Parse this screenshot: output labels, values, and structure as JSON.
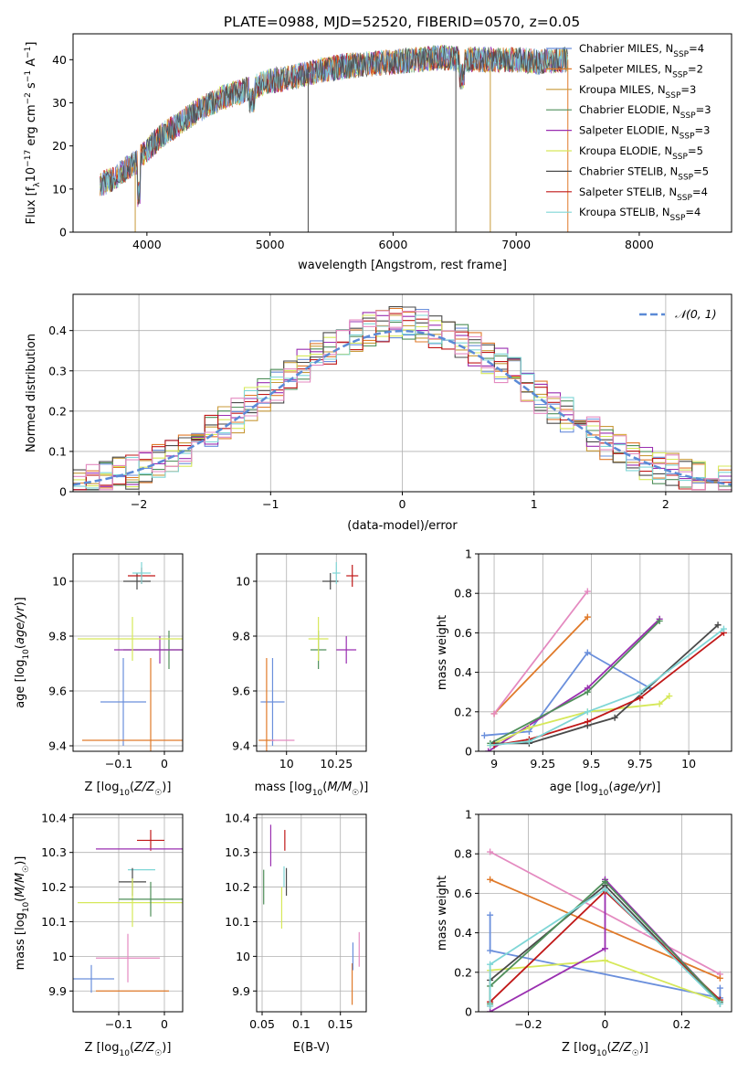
{
  "figure_title": "PLATE=0988, MJD=52520, FIBERID=0570, z=0.05",
  "colors": {
    "Chabrier MILES": "#6a8fdc",
    "Salpeter MILES": "#e07a2a",
    "Kroupa MILES": "#c89a3a",
    "Chabrier ELODIE": "#4f8f5a",
    "Salpeter ELODIE": "#9a2fb0",
    "Kroupa ELODIE": "#d6e85a",
    "Chabrier STELIB": "#4a4a4a",
    "Salpeter STELIB": "#c01818",
    "Kroupa STELIB": "#7fd6d6",
    "pink": "#e48ac0",
    "normal": "#5b8ad6"
  },
  "chart_data": [
    {
      "id": "spectrum",
      "type": "line",
      "title": "PLATE=0988, MJD=52520, FIBERID=0570, z=0.05",
      "xlabel": "wavelength [Angstrom, rest frame]",
      "ylabel": "Flux [f_λ10^-17 erg cm^-2 s^-1 A^-1]",
      "xlim": [
        3400,
        8750
      ],
      "ylim": [
        0,
        46
      ],
      "xticks": [
        4000,
        5000,
        6000,
        7000,
        8000
      ],
      "yticks": [
        0,
        10,
        20,
        30,
        40
      ],
      "grid": false,
      "legend_position": "top-right",
      "continuum": {
        "x": [
          3620,
          3700,
          3800,
          3900,
          4000,
          4100,
          4200,
          4400,
          4600,
          4800,
          5000,
          5200,
          5400,
          5600,
          5800,
          6000,
          6200,
          6400,
          6600,
          6800,
          7000,
          7200,
          7400
        ],
        "y": [
          11,
          12,
          14,
          16,
          19,
          22,
          24,
          28,
          31,
          33,
          35,
          36,
          37.5,
          38.5,
          39,
          39.5,
          40,
          40.5,
          40,
          40,
          40,
          39.5,
          40
        ]
      },
      "legend": [
        {
          "label": "Chabrier MILES, N",
          "sub": "SSP",
          "suffix": "=4"
        },
        {
          "label": "Salpeter MILES, N",
          "sub": "SSP",
          "suffix": "=2"
        },
        {
          "label": "Kroupa MILES, N",
          "sub": "SSP",
          "suffix": "=3"
        },
        {
          "label": "Chabrier ELODIE, N",
          "sub": "SSP",
          "suffix": "=3"
        },
        {
          "label": "Salpeter ELODIE, N",
          "sub": "SSP",
          "suffix": "=3"
        },
        {
          "label": "Kroupa ELODIE, N",
          "sub": "SSP",
          "suffix": "=5"
        },
        {
          "label": "Chabrier STELIB, N",
          "sub": "SSP",
          "suffix": "=5"
        },
        {
          "label": "Salpeter STELIB, N",
          "sub": "SSP",
          "suffix": "=4"
        },
        {
          "label": "Kroupa STELIB, N",
          "sub": "SSP",
          "suffix": "=4"
        }
      ]
    },
    {
      "id": "residuals",
      "type": "line",
      "xlabel": "(data-model)/error",
      "ylabel": "Normed distribution",
      "xlim": [
        -2.5,
        2.5
      ],
      "ylim": [
        0,
        0.49
      ],
      "xticks": [
        -2,
        -1,
        0,
        1,
        2
      ],
      "yticks": [
        0.0,
        0.1,
        0.2,
        0.3,
        0.4
      ],
      "grid": true,
      "legend_position": "top-right",
      "legend": "𝒩(0, 1)"
    },
    {
      "id": "age_vs_Z",
      "type": "scatter",
      "xlabel": "Z [log10(Z/Z☉)]",
      "ylabel": "age  [log10(age/yr)]",
      "xlim": [
        -0.2,
        0.04
      ],
      "ylim": [
        9.38,
        10.1
      ],
      "xticks": [
        -0.1,
        0.0
      ],
      "yticks": [
        9.4,
        9.6,
        9.8,
        10.0
      ],
      "grid": true,
      "points": [
        {
          "model": "Chabrier MILES",
          "x": -0.09,
          "y": 9.56,
          "xerr": 0.05,
          "yerr": 0.16
        },
        {
          "model": "Salpeter MILES",
          "x": -0.03,
          "y": 9.42,
          "xerr": 0.15,
          "yerr": 0.3
        },
        {
          "model": "Chabrier ELODIE",
          "x": 0.01,
          "y": 9.75,
          "xerr": 0.1,
          "yerr": 0.07
        },
        {
          "model": "Salpeter ELODIE",
          "x": -0.01,
          "y": 9.75,
          "xerr": 0.1,
          "yerr": 0.05
        },
        {
          "model": "Kroupa ELODIE",
          "x": -0.07,
          "y": 9.79,
          "xerr": 0.12,
          "yerr": 0.08
        },
        {
          "model": "Chabrier STELIB",
          "x": -0.06,
          "y": 10.0,
          "xerr": 0.03,
          "yerr": 0.03
        },
        {
          "model": "Salpeter STELIB",
          "x": -0.05,
          "y": 10.02,
          "xerr": 0.03,
          "yerr": 0.03
        },
        {
          "model": "Kroupa STELIB",
          "x": -0.05,
          "y": 10.03,
          "xerr": 0.02,
          "yerr": 0.04
        }
      ]
    },
    {
      "id": "age_vs_mass",
      "type": "scatter",
      "xlabel": "mass [log10(M/M☉)]",
      "ylabel": "",
      "xlim": [
        9.85,
        10.4
      ],
      "ylim": [
        9.38,
        10.1
      ],
      "xticks": [
        10.0,
        10.25
      ],
      "yticks": [
        9.4,
        9.6,
        9.8,
        10.0
      ],
      "grid": true,
      "points": [
        {
          "model": "Chabrier MILES",
          "x": 9.93,
          "y": 9.56,
          "xerr": 0.06,
          "yerr": 0.16
        },
        {
          "model": "Salpeter MILES",
          "x": 9.9,
          "y": 9.42,
          "xerr": 0.04,
          "yerr": 0.3
        },
        {
          "model": "pink",
          "x": 9.98,
          "y": 9.42,
          "xerr": 0.06,
          "yerr": 0.0
        },
        {
          "model": "Chabrier ELODIE",
          "x": 10.16,
          "y": 9.75,
          "xerr": 0.04,
          "yerr": 0.07
        },
        {
          "model": "Salpeter ELODIE",
          "x": 10.3,
          "y": 9.75,
          "xerr": 0.05,
          "yerr": 0.05
        },
        {
          "model": "Kroupa ELODIE",
          "x": 10.16,
          "y": 9.79,
          "xerr": 0.05,
          "yerr": 0.08
        },
        {
          "model": "Chabrier STELIB",
          "x": 10.22,
          "y": 10.0,
          "xerr": 0.04,
          "yerr": 0.03
        },
        {
          "model": "Salpeter STELIB",
          "x": 10.33,
          "y": 10.02,
          "xerr": 0.03,
          "yerr": 0.04
        },
        {
          "model": "Kroupa STELIB",
          "x": 10.25,
          "y": 10.03,
          "xerr": 0.02,
          "yerr": 0.04
        }
      ]
    },
    {
      "id": "weight_vs_age",
      "type": "line",
      "xlabel": "age  [log10(age/yr)]",
      "ylabel": "mass weight",
      "xlim": [
        8.92,
        10.22
      ],
      "ylim": [
        0,
        1
      ],
      "xticks": [
        9.0,
        9.25,
        9.5,
        9.75,
        10.0
      ],
      "yticks": [
        0.0,
        0.2,
        0.4,
        0.6,
        0.8,
        1.0
      ],
      "grid": true,
      "series": [
        {
          "model": "Chabrier MILES",
          "x": [
            8.95,
            9.18,
            9.48,
            9.8
          ],
          "y": [
            0.08,
            0.1,
            0.5,
            0.32
          ]
        },
        {
          "model": "Salpeter MILES",
          "x": [
            9.0,
            9.48
          ],
          "y": [
            0.19,
            0.68
          ]
        },
        {
          "model": "pink",
          "x": [
            9.0,
            9.48
          ],
          "y": [
            0.19,
            0.81
          ]
        },
        {
          "model": "Salpeter ELODIE",
          "x": [
            8.97,
            9.48,
            9.85
          ],
          "y": [
            0.0,
            0.32,
            0.67
          ]
        },
        {
          "model": "Chabrier ELODIE",
          "x": [
            8.98,
            9.48,
            9.85
          ],
          "y": [
            0.04,
            0.3,
            0.66
          ]
        },
        {
          "model": "Kroupa ELODIE",
          "x": [
            8.98,
            9.18,
            9.48,
            9.85,
            9.9
          ],
          "y": [
            0.03,
            0.12,
            0.2,
            0.24,
            0.28
          ]
        },
        {
          "model": "Chabrier STELIB",
          "x": [
            9.0,
            9.18,
            9.48,
            9.62,
            10.15
          ],
          "y": [
            0.04,
            0.04,
            0.13,
            0.17,
            0.64
          ]
        },
        {
          "model": "Salpeter STELIB",
          "x": [
            9.0,
            9.18,
            9.48,
            9.75,
            10.18
          ],
          "y": [
            0.03,
            0.06,
            0.15,
            0.27,
            0.6
          ]
        },
        {
          "model": "Kroupa STELIB",
          "x": [
            8.98,
            9.18,
            9.48,
            9.75,
            10.18
          ],
          "y": [
            0.03,
            0.05,
            0.2,
            0.3,
            0.62
          ]
        }
      ]
    },
    {
      "id": "mass_vs_Z",
      "type": "scatter",
      "xlabel": "Z [log10(Z/Z☉)]",
      "ylabel": "mass [log10(M/M☉)]",
      "xlim": [
        -0.2,
        0.04
      ],
      "ylim": [
        9.84,
        10.41
      ],
      "xticks": [
        -0.1,
        0.0
      ],
      "yticks": [
        9.9,
        10.0,
        10.1,
        10.2,
        10.3,
        10.4
      ],
      "grid": true,
      "points": [
        {
          "model": "Chabrier MILES",
          "x": -0.16,
          "y": 9.935,
          "xerr": 0.05,
          "yerr": 0.04
        },
        {
          "model": "Salpeter MILES",
          "x": -0.07,
          "y": 9.9,
          "xerr": 0.08,
          "yerr": 0.0
        },
        {
          "model": "pink",
          "x": -0.08,
          "y": 9.995,
          "xerr": 0.07,
          "yerr": 0.07
        },
        {
          "model": "Salpeter STELIB",
          "x": -0.03,
          "y": 10.335,
          "xerr": 0.03,
          "yerr": 0.03
        },
        {
          "model": "Salpeter ELODIE",
          "x": -0.05,
          "y": 10.31,
          "xerr": 0.1,
          "yerr": 0.0
        },
        {
          "model": "Kroupa STELIB",
          "x": -0.05,
          "y": 10.25,
          "xerr": 0.03,
          "yerr": 0.0
        },
        {
          "model": "Chabrier STELIB",
          "x": -0.07,
          "y": 10.215,
          "xerr": 0.03,
          "yerr": 0.04
        },
        {
          "model": "Kroupa ELODIE",
          "x": -0.07,
          "y": 10.155,
          "xerr": 0.12,
          "yerr": 0.07
        },
        {
          "model": "Chabrier ELODIE",
          "x": -0.03,
          "y": 10.165,
          "xerr": 0.07,
          "yerr": 0.05
        }
      ]
    },
    {
      "id": "mass_vs_ebv",
      "type": "scatter",
      "xlabel": "E(B-V)",
      "ylabel": "",
      "xlim": [
        0.043,
        0.183
      ],
      "ylim": [
        9.84,
        10.41
      ],
      "xticks": [
        0.05,
        0.1,
        0.15
      ],
      "yticks": [
        9.9,
        10.0,
        10.1,
        10.2,
        10.3,
        10.4
      ],
      "grid": true,
      "points": [
        {
          "model": "Chabrier ELODIE",
          "x": 0.052,
          "y": 10.2,
          "yerr": 0.05
        },
        {
          "model": "Salpeter ELODIE",
          "x": 0.061,
          "y": 10.32,
          "yerr": 0.06
        },
        {
          "model": "Kroupa ELODIE",
          "x": 0.075,
          "y": 10.14,
          "yerr": 0.06
        },
        {
          "model": "Kroupa STELIB",
          "x": 0.078,
          "y": 10.23,
          "yerr": 0.03
        },
        {
          "model": "Salpeter STELIB",
          "x": 0.079,
          "y": 10.335,
          "yerr": 0.03
        },
        {
          "model": "Chabrier STELIB",
          "x": 0.081,
          "y": 10.215,
          "yerr": 0.04
        },
        {
          "model": "Salpeter MILES",
          "x": 0.165,
          "y": 9.92,
          "yerr": 0.06
        },
        {
          "model": "Chabrier MILES",
          "x": 0.166,
          "y": 10.0,
          "yerr": 0.04
        },
        {
          "model": "pink",
          "x": 0.174,
          "y": 10.02,
          "yerr": 0.05
        }
      ]
    },
    {
      "id": "weight_vs_Z",
      "type": "line",
      "xlabel": "Z [log10(Z/Z☉)]",
      "ylabel": "mass weight",
      "xlim": [
        -0.33,
        0.33
      ],
      "ylim": [
        0,
        1
      ],
      "xticks": [
        -0.2,
        0.0,
        0.2
      ],
      "yticks": [
        0.0,
        0.2,
        0.4,
        0.6,
        0.8,
        1.0
      ],
      "grid": true,
      "series": [
        {
          "model": "pink",
          "x": [
            -0.3,
            0.3
          ],
          "y": [
            0.81,
            0.19
          ]
        },
        {
          "model": "Salpeter MILES",
          "x": [
            -0.3,
            0.3
          ],
          "y": [
            0.67,
            0.17
          ]
        },
        {
          "model": "Chabrier MILES",
          "x": [
            -0.3,
            -0.3,
            0.3,
            0.3
          ],
          "y": [
            0.49,
            0.31,
            0.07,
            0.12
          ]
        },
        {
          "model": "Kroupa ELODIE",
          "x": [
            -0.3,
            0.0,
            0.3
          ],
          "y": [
            0.21,
            0.26,
            0.05
          ]
        },
        {
          "model": "Salpeter ELODIE",
          "x": [
            -0.3,
            0.0,
            0.0,
            0.3
          ],
          "y": [
            0.0,
            0.32,
            0.67,
            0.05
          ]
        },
        {
          "model": "Chabrier STELIB",
          "x": [
            -0.3,
            -0.3,
            0.0,
            0.3
          ],
          "y": [
            0.03,
            0.16,
            0.64,
            0.04
          ]
        },
        {
          "model": "Salpeter STELIB",
          "x": [
            -0.3,
            0.0,
            0.3
          ],
          "y": [
            0.05,
            0.61,
            0.06
          ]
        },
        {
          "model": "Chabrier ELODIE",
          "x": [
            -0.3,
            -0.3,
            0.0,
            0.3
          ],
          "y": [
            0.04,
            0.13,
            0.66,
            0.05
          ]
        },
        {
          "model": "Kroupa STELIB",
          "x": [
            -0.3,
            -0.3,
            0.0,
            0.3
          ],
          "y": [
            0.03,
            0.24,
            0.62,
            0.04
          ]
        }
      ]
    }
  ]
}
